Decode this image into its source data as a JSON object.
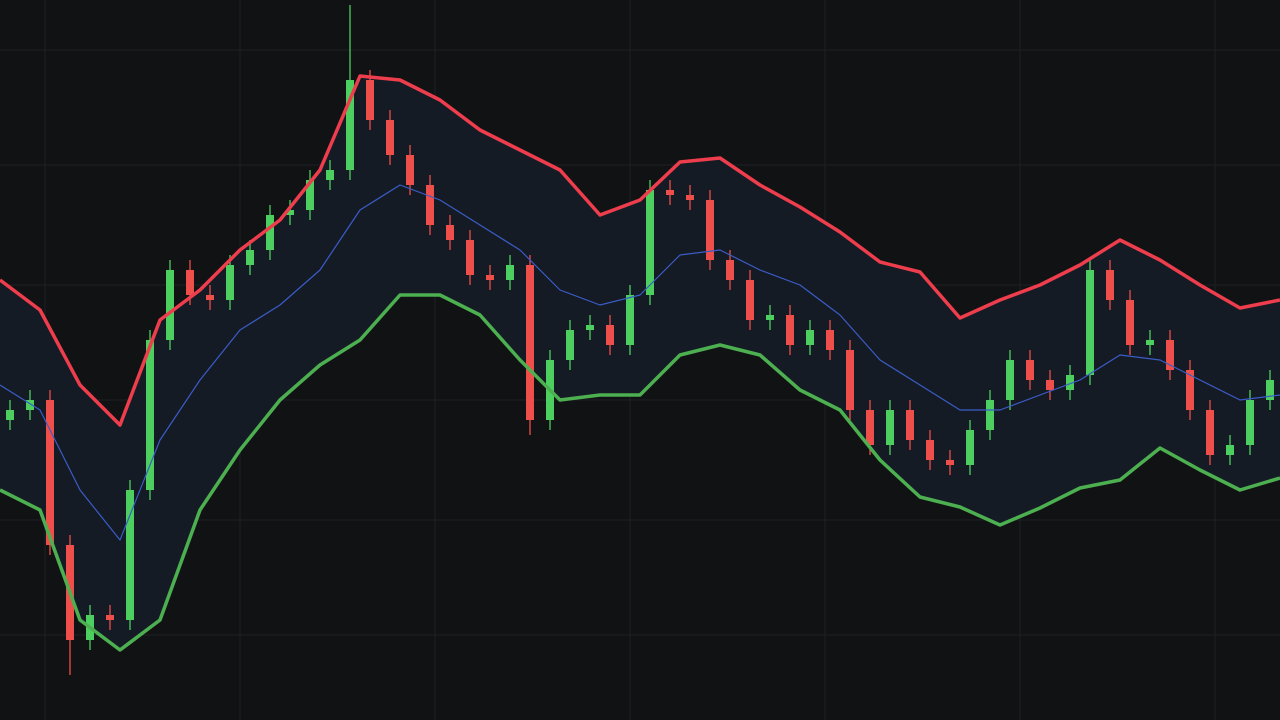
{
  "chart_data": {
    "type": "candlestick",
    "background": "#111213",
    "grid": true,
    "grid_color": "#1e2024",
    "xlim": [
      0,
      1280
    ],
    "ylim": [
      0,
      72
    ],
    "xticks": [
      45,
      240,
      435,
      630,
      825,
      1020,
      1215
    ],
    "yticks": [
      67.0,
      55.5,
      43.5,
      32.0,
      20.0,
      8.5
    ],
    "up_color": "#4ccf5e",
    "down_color": "#ef4f4a",
    "band_fill": "#151b24",
    "candles": {
      "x": [
        10,
        30,
        50,
        70,
        90,
        110,
        130,
        150,
        170,
        190,
        210,
        230,
        250,
        270,
        290,
        310,
        330,
        350,
        370,
        390,
        410,
        430,
        450,
        470,
        490,
        510,
        530,
        550,
        570,
        590,
        610,
        630,
        650,
        670,
        690,
        710,
        730,
        750,
        770,
        790,
        810,
        830,
        850,
        870,
        890,
        910,
        930,
        950,
        970,
        990,
        1010,
        1030,
        1050,
        1070,
        1090,
        1110,
        1130,
        1150,
        1170,
        1190,
        1210,
        1230,
        1250,
        1270
      ],
      "open": [
        30.0,
        31.0,
        32.0,
        17.5,
        8.0,
        10.5,
        10.0,
        23.0,
        38.0,
        45.0,
        42.5,
        42.0,
        45.5,
        47.0,
        50.5,
        51.0,
        54.0,
        55.0,
        64.0,
        60.0,
        56.5,
        53.5,
        49.5,
        48.0,
        44.5,
        44.0,
        45.5,
        30.0,
        36.0,
        39.0,
        39.5,
        37.5,
        42.5,
        53.0,
        52.5,
        52.0,
        46.0,
        44.0,
        40.0,
        40.5,
        37.5,
        39.0,
        37.0,
        31.0,
        27.5,
        31.0,
        28.0,
        26.0,
        25.5,
        29.0,
        32.0,
        36.0,
        34.0,
        33.0,
        34.5,
        45.0,
        42.0,
        37.5,
        38.0,
        35.0,
        31.0,
        26.5,
        27.5,
        32.0
      ],
      "high": [
        32.0,
        33.0,
        33.0,
        18.5,
        11.5,
        11.5,
        24.0,
        39.0,
        46.0,
        46.0,
        43.5,
        46.5,
        48.0,
        51.5,
        52.0,
        55.0,
        56.0,
        71.5,
        65.0,
        61.0,
        57.5,
        54.5,
        50.5,
        49.0,
        45.5,
        46.5,
        46.5,
        37.0,
        40.0,
        40.5,
        40.5,
        43.5,
        54.0,
        54.0,
        53.5,
        53.0,
        47.0,
        45.0,
        41.5,
        41.5,
        40.0,
        40.0,
        38.0,
        32.0,
        32.0,
        32.0,
        29.0,
        27.0,
        30.0,
        33.0,
        37.0,
        37.0,
        35.0,
        35.5,
        46.0,
        46.0,
        43.0,
        39.0,
        39.0,
        36.0,
        32.0,
        28.5,
        33.0,
        35.0
      ],
      "low": [
        29.0,
        30.0,
        16.5,
        4.5,
        7.0,
        9.0,
        9.0,
        22.0,
        37.0,
        41.5,
        41.0,
        41.0,
        44.5,
        46.0,
        49.5,
        50.0,
        53.0,
        54.0,
        59.0,
        55.5,
        52.5,
        48.5,
        47.0,
        43.5,
        43.0,
        43.0,
        28.5,
        29.0,
        35.0,
        38.0,
        36.5,
        36.5,
        41.5,
        51.5,
        51.0,
        45.0,
        43.0,
        39.0,
        39.0,
        36.5,
        36.5,
        36.0,
        30.0,
        26.5,
        26.5,
        27.0,
        25.0,
        24.5,
        24.5,
        28.0,
        31.0,
        33.0,
        32.0,
        32.0,
        33.5,
        41.0,
        36.5,
        36.5,
        34.0,
        30.0,
        25.5,
        25.5,
        26.5,
        31.0
      ],
      "close": [
        31.0,
        32.0,
        17.5,
        8.0,
        10.5,
        10.0,
        23.0,
        38.0,
        45.0,
        42.5,
        42.0,
        45.5,
        47.0,
        50.5,
        51.0,
        54.0,
        55.0,
        64.0,
        60.0,
        56.5,
        53.5,
        49.5,
        48.0,
        44.5,
        44.0,
        45.5,
        30.0,
        36.0,
        39.0,
        39.5,
        37.5,
        42.5,
        53.0,
        52.5,
        52.0,
        46.0,
        44.0,
        40.0,
        40.5,
        37.5,
        39.0,
        37.0,
        31.0,
        27.5,
        31.0,
        28.0,
        26.0,
        25.5,
        29.0,
        32.0,
        36.0,
        34.0,
        33.0,
        34.5,
        45.0,
        42.0,
        37.5,
        38.0,
        35.0,
        31.0,
        26.5,
        27.5,
        32.0,
        34.0
      ]
    },
    "x": [
      0,
      40,
      80,
      120,
      160,
      200,
      240,
      280,
      320,
      360,
      400,
      440,
      480,
      520,
      560,
      600,
      640,
      680,
      720,
      760,
      800,
      840,
      880,
      920,
      960,
      1000,
      1040,
      1080,
      1120,
      1160,
      1200,
      1240,
      1280
    ],
    "series": [
      {
        "type": "line",
        "color": "#ee3d4c",
        "width": 3.5,
        "values": [
          44.0,
          41.0,
          33.5,
          29.5,
          40.0,
          43.0,
          47.0,
          50.0,
          55.0,
          64.4,
          64.0,
          62.0,
          59.0,
          57.0,
          55.0,
          50.5,
          52.0,
          55.8,
          56.2,
          53.5,
          51.3,
          48.8,
          45.8,
          44.8,
          40.2,
          42.0,
          43.5,
          45.5,
          48.0,
          46.0,
          43.5,
          41.2,
          42.0
        ]
      },
      {
        "type": "line",
        "color": "#3a5cc8",
        "width": 1.2,
        "values": [
          33.5,
          31.0,
          23.0,
          18.0,
          28.0,
          34.0,
          39.0,
          41.5,
          45.0,
          51.0,
          53.5,
          52.0,
          49.5,
          47.0,
          43.0,
          41.5,
          42.5,
          46.5,
          47.0,
          45.0,
          43.5,
          40.5,
          36.0,
          33.5,
          31.0,
          31.0,
          32.5,
          34.0,
          36.5,
          36.0,
          34.0,
          32.0,
          32.5
        ]
      },
      {
        "type": "line",
        "color": "#4caf50",
        "width": 3.5,
        "values": [
          23.0,
          21.0,
          10.0,
          7.0,
          10.0,
          21.0,
          27.0,
          32.0,
          35.5,
          38.0,
          42.5,
          42.5,
          40.5,
          36.0,
          32.0,
          32.5,
          32.5,
          36.5,
          37.5,
          36.5,
          33.0,
          31.0,
          26.0,
          22.3,
          21.3,
          19.5,
          21.2,
          23.2,
          24.0,
          27.2,
          25.0,
          23.0,
          24.2
        ]
      }
    ]
  }
}
